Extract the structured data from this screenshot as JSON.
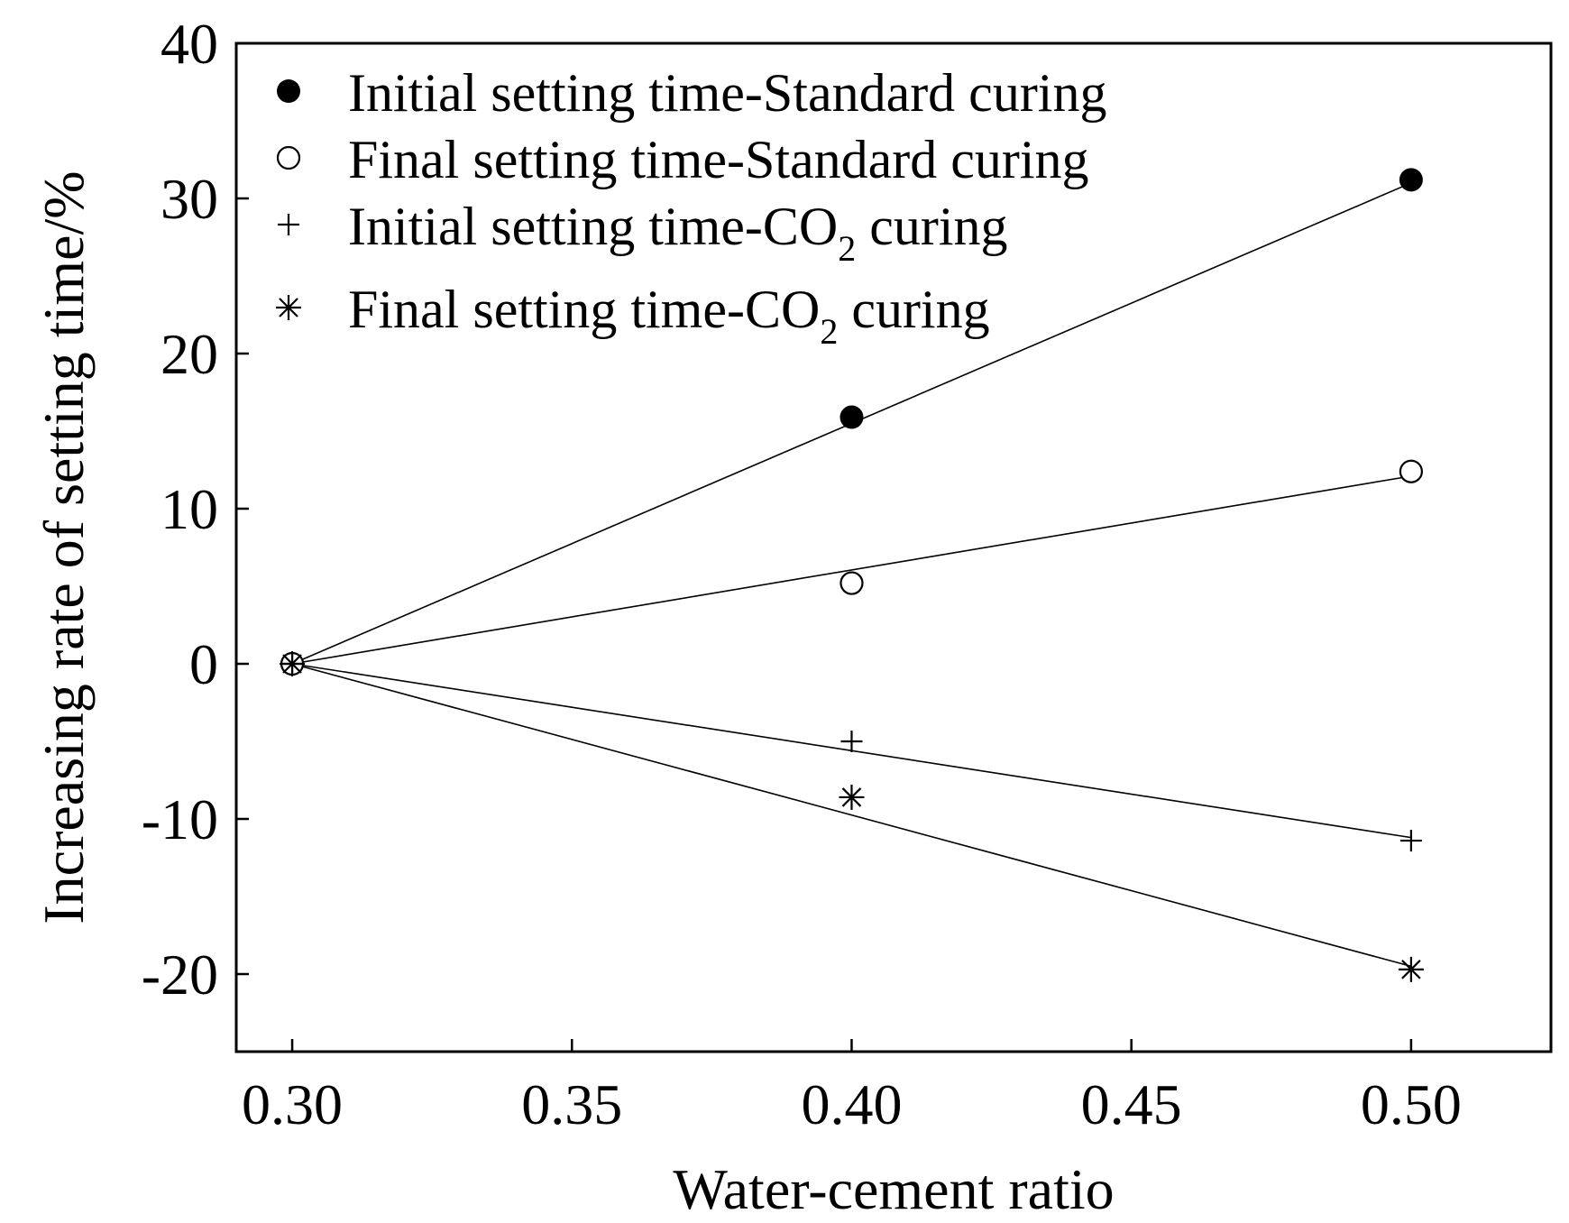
{
  "chart_data": {
    "type": "scatter",
    "title": "",
    "xlabel": "Water-cement ratio",
    "ylabel": "Increasing rate of setting time/%",
    "xlim": [
      0.29,
      0.525
    ],
    "ylim": [
      -25,
      40
    ],
    "xticks": [
      "0.30",
      "0.35",
      "0.40",
      "0.45",
      "0.50"
    ],
    "yticks": [
      "-20",
      "-10",
      "0",
      "10",
      "20",
      "30",
      "40"
    ],
    "grid": false,
    "legend_position": "top-left",
    "series": [
      {
        "name_main": "Initial setting time-Standard curing",
        "name_sub": "",
        "name_tail": "",
        "marker": "filled-circle",
        "x": [
          0.3,
          0.4,
          0.5
        ],
        "y": [
          0,
          15.9,
          31.2
        ],
        "fit": [
          0,
          31.0
        ]
      },
      {
        "name_main": "Final setting time-Standard curing",
        "name_sub": "",
        "name_tail": "",
        "marker": "open-circle",
        "x": [
          0.3,
          0.4,
          0.5
        ],
        "y": [
          0,
          5.2,
          12.4
        ],
        "fit": [
          0,
          12.1
        ]
      },
      {
        "name_main": "Initial setting time-CO",
        "name_sub": "2",
        "name_tail": " curing",
        "marker": "plus",
        "x": [
          0.3,
          0.4,
          0.5
        ],
        "y": [
          0,
          -5.0,
          -11.4
        ],
        "fit": [
          0,
          -11.2
        ]
      },
      {
        "name_main": " Final setting time-CO",
        "name_sub": "2",
        "name_tail": " curing",
        "marker": "asterisk",
        "x": [
          0.3,
          0.4,
          0.5
        ],
        "y": [
          0,
          -8.6,
          -19.7
        ],
        "fit": [
          0,
          -19.5
        ]
      }
    ]
  }
}
